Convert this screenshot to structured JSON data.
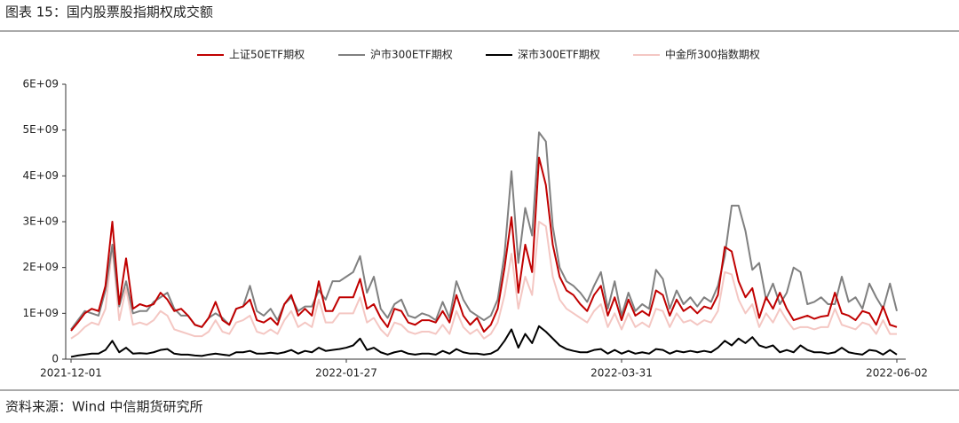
{
  "chart_data": {
    "type": "line",
    "title": "图表 15：国内股票股指期权成交额",
    "source": "资料来源：Wind 中信期货研究所",
    "categories": [
      "2021-12-01",
      null,
      null,
      null,
      null,
      null,
      null,
      null,
      null,
      null,
      null,
      null,
      null,
      null,
      null,
      null,
      null,
      null,
      null,
      null,
      null,
      null,
      null,
      null,
      null,
      null,
      null,
      null,
      null,
      null,
      null,
      null,
      null,
      null,
      null,
      null,
      null,
      null,
      null,
      null,
      "2022-01-27",
      null,
      null,
      null,
      null,
      null,
      null,
      null,
      null,
      null,
      null,
      null,
      null,
      null,
      null,
      null,
      null,
      null,
      null,
      null,
      null,
      null,
      null,
      null,
      null,
      null,
      null,
      null,
      null,
      null,
      null,
      null,
      null,
      null,
      null,
      null,
      null,
      null,
      null,
      null,
      "2022-03-31",
      null,
      null,
      null,
      null,
      null,
      null,
      null,
      null,
      null,
      null,
      null,
      null,
      null,
      null,
      null,
      null,
      null,
      null,
      null,
      null,
      null,
      null,
      null,
      null,
      null,
      null,
      null,
      null,
      null,
      null,
      null,
      null,
      null,
      null,
      null,
      null,
      null,
      null,
      null,
      "2022-06-02"
    ],
    "ylim": [
      0,
      6000000000.0
    ],
    "yticks": [
      0,
      {
        "value": 1000000000.0,
        "label": "1E+09"
      },
      {
        "value": 2000000000.0,
        "label": "2E+09"
      },
      {
        "value": 3000000000.0,
        "label": "3E+09"
      },
      {
        "value": 4000000000.0,
        "label": "4E+09"
      },
      {
        "value": 5000000000.0,
        "label": "5E+09"
      },
      {
        "value": 6000000000.0,
        "label": "6E+09"
      }
    ],
    "grid": false,
    "legend": "top",
    "series": [
      {
        "name": "上证50ETF期权",
        "color": "#c00000",
        "values": [
          620000000.0,
          800000000.0,
          1000000000.0,
          1100000000.0,
          1050000000.0,
          1600000000.0,
          3000000000.0,
          1200000000.0,
          2200000000.0,
          1100000000.0,
          1200000000.0,
          1150000000.0,
          1200000000.0,
          1450000000.0,
          1300000000.0,
          1050000000.0,
          1100000000.0,
          950000000.0,
          750000000.0,
          700000000.0,
          900000000.0,
          1250000000.0,
          850000000.0,
          750000000.0,
          1100000000.0,
          1150000000.0,
          1300000000.0,
          850000000.0,
          800000000.0,
          900000000.0,
          750000000.0,
          1200000000.0,
          1400000000.0,
          950000000.0,
          1100000000.0,
          950000000.0,
          1700000000.0,
          1050000000.0,
          1050000000.0,
          1350000000.0,
          1350000000.0,
          1350000000.0,
          1750000000.0,
          1100000000.0,
          1200000000.0,
          900000000.0,
          700000000.0,
          1100000000.0,
          1050000000.0,
          800000000.0,
          750000000.0,
          850000000.0,
          850000000.0,
          800000000.0,
          1050000000.0,
          800000000.0,
          1400000000.0,
          950000000.0,
          750000000.0,
          900000000.0,
          600000000.0,
          750000000.0,
          1100000000.0,
          2000000000.0,
          3100000000.0,
          1450000000.0,
          2500000000.0,
          1900000000.0,
          4400000000.0,
          3800000000.0,
          2500000000.0,
          1800000000.0,
          1500000000.0,
          1400000000.0,
          1200000000.0,
          1050000000.0,
          1400000000.0,
          1600000000.0,
          950000000.0,
          1350000000.0,
          850000000.0,
          1300000000.0,
          950000000.0,
          1050000000.0,
          950000000.0,
          1500000000.0,
          1400000000.0,
          950000000.0,
          1300000000.0,
          1050000000.0,
          1150000000.0,
          1000000000.0,
          1150000000.0,
          1100000000.0,
          1400000000.0,
          2450000000.0,
          2350000000.0,
          1700000000.0,
          1350000000.0,
          1550000000.0,
          900000000.0,
          1350000000.0,
          1100000000.0,
          1450000000.0,
          1100000000.0,
          850000000.0,
          900000000.0,
          950000000.0,
          880000000.0,
          930000000.0,
          950000000.0,
          1450000000.0,
          1000000000.0,
          950000000.0,
          850000000.0,
          1050000000.0,
          1000000000.0,
          750000000.0,
          1150000000.0,
          750000000.0,
          700000000.0
        ]
      },
      {
        "name": "沪市300ETF期权",
        "color": "#808080",
        "values": [
          650000000.0,
          850000000.0,
          1050000000.0,
          1000000000.0,
          950000000.0,
          1500000000.0,
          2500000000.0,
          1150000000.0,
          1700000000.0,
          1000000000.0,
          1050000000.0,
          1050000000.0,
          1250000000.0,
          1350000000.0,
          1450000000.0,
          1100000000.0,
          950000000.0,
          950000000.0,
          750000000.0,
          700000000.0,
          900000000.0,
          1000000000.0,
          900000000.0,
          750000000.0,
          1100000000.0,
          1150000000.0,
          1600000000.0,
          1050000000.0,
          950000000.0,
          1100000000.0,
          850000000.0,
          1200000000.0,
          1350000000.0,
          1050000000.0,
          1150000000.0,
          1150000000.0,
          1500000000.0,
          1300000000.0,
          1700000000.0,
          1700000000.0,
          1800000000.0,
          1900000000.0,
          2250000000.0,
          1450000000.0,
          1800000000.0,
          1100000000.0,
          900000000.0,
          1200000000.0,
          1300000000.0,
          950000000.0,
          900000000.0,
          1000000000.0,
          950000000.0,
          850000000.0,
          1250000000.0,
          900000000.0,
          1700000000.0,
          1300000000.0,
          1050000000.0,
          950000000.0,
          850000000.0,
          950000000.0,
          1300000000.0,
          2300000000.0,
          4100000000.0,
          2100000000.0,
          3300000000.0,
          2700000000.0,
          4950000000.0,
          4750000000.0,
          2900000000.0,
          2000000000.0,
          1700000000.0,
          1600000000.0,
          1450000000.0,
          1250000000.0,
          1600000000.0,
          1900000000.0,
          1100000000.0,
          1700000000.0,
          950000000.0,
          1450000000.0,
          1050000000.0,
          1200000000.0,
          1100000000.0,
          1950000000.0,
          1750000000.0,
          1100000000.0,
          1500000000.0,
          1200000000.0,
          1350000000.0,
          1150000000.0,
          1350000000.0,
          1250000000.0,
          1600000000.0,
          2250000000.0,
          3350000000.0,
          3350000000.0,
          2800000000.0,
          1950000000.0,
          2100000000.0,
          1300000000.0,
          1650000000.0,
          1200000000.0,
          1450000000.0,
          2000000000.0,
          1900000000.0,
          1200000000.0,
          1250000000.0,
          1350000000.0,
          1200000000.0,
          1200000000.0,
          1800000000.0,
          1250000000.0,
          1350000000.0,
          1100000000.0,
          1650000000.0,
          1350000000.0,
          1100000000.0,
          1650000000.0,
          1050000000.0
        ]
      },
      {
        "name": "深市300ETF期权",
        "color": "#000000",
        "values": [
          50000000.0,
          80000000.0,
          100000000.0,
          120000000.0,
          120000000.0,
          200000000.0,
          400000000.0,
          150000000.0,
          250000000.0,
          120000000.0,
          130000000.0,
          120000000.0,
          150000000.0,
          200000000.0,
          220000000.0,
          120000000.0,
          100000000.0,
          100000000.0,
          80000000.0,
          70000000.0,
          100000000.0,
          120000000.0,
          100000000.0,
          80000000.0,
          150000000.0,
          150000000.0,
          180000000.0,
          120000000.0,
          120000000.0,
          140000000.0,
          120000000.0,
          150000000.0,
          200000000.0,
          120000000.0,
          180000000.0,
          150000000.0,
          250000000.0,
          180000000.0,
          200000000.0,
          220000000.0,
          250000000.0,
          300000000.0,
          450000000.0,
          200000000.0,
          250000000.0,
          150000000.0,
          100000000.0,
          150000000.0,
          180000000.0,
          120000000.0,
          100000000.0,
          120000000.0,
          120000000.0,
          100000000.0,
          180000000.0,
          120000000.0,
          220000000.0,
          150000000.0,
          120000000.0,
          120000000.0,
          100000000.0,
          120000000.0,
          200000000.0,
          400000000.0,
          650000000.0,
          250000000.0,
          550000000.0,
          350000000.0,
          720000000.0,
          600000000.0,
          450000000.0,
          300000000.0,
          220000000.0,
          180000000.0,
          150000000.0,
          150000000.0,
          200000000.0,
          220000000.0,
          120000000.0,
          200000000.0,
          120000000.0,
          180000000.0,
          120000000.0,
          150000000.0,
          120000000.0,
          220000000.0,
          200000000.0,
          120000000.0,
          180000000.0,
          150000000.0,
          180000000.0,
          150000000.0,
          180000000.0,
          150000000.0,
          250000000.0,
          400000000.0,
          300000000.0,
          450000000.0,
          350000000.0,
          480000000.0,
          300000000.0,
          250000000.0,
          300000000.0,
          150000000.0,
          200000000.0,
          150000000.0,
          300000000.0,
          200000000.0,
          150000000.0,
          150000000.0,
          120000000.0,
          150000000.0,
          250000000.0,
          150000000.0,
          120000000.0,
          100000000.0,
          200000000.0,
          180000000.0,
          100000000.0,
          200000000.0,
          100000000.0
        ]
      },
      {
        "name": "中金所300指数期权",
        "color": "#f4c7c3",
        "values": [
          450000000.0,
          550000000.0,
          700000000.0,
          800000000.0,
          750000000.0,
          1100000000.0,
          2450000000.0,
          850000000.0,
          1550000000.0,
          750000000.0,
          800000000.0,
          750000000.0,
          850000000.0,
          1050000000.0,
          950000000.0,
          650000000.0,
          600000000.0,
          550000000.0,
          500000000.0,
          500000000.0,
          600000000.0,
          850000000.0,
          600000000.0,
          550000000.0,
          800000000.0,
          850000000.0,
          950000000.0,
          600000000.0,
          550000000.0,
          650000000.0,
          550000000.0,
          850000000.0,
          1050000000.0,
          700000000.0,
          800000000.0,
          700000000.0,
          1300000000.0,
          800000000.0,
          800000000.0,
          1000000000.0,
          1000000000.0,
          1000000000.0,
          1350000000.0,
          800000000.0,
          900000000.0,
          650000000.0,
          500000000.0,
          800000000.0,
          750000000.0,
          600000000.0,
          550000000.0,
          600000000.0,
          600000000.0,
          550000000.0,
          750000000.0,
          550000000.0,
          1050000000.0,
          700000000.0,
          550000000.0,
          650000000.0,
          450000000.0,
          550000000.0,
          800000000.0,
          1400000000.0,
          2300000000.0,
          1100000000.0,
          1800000000.0,
          1400000000.0,
          3000000000.0,
          2900000000.0,
          1800000000.0,
          1300000000.0,
          1100000000.0,
          1000000000.0,
          900000000.0,
          800000000.0,
          1050000000.0,
          1200000000.0,
          700000000.0,
          1000000000.0,
          650000000.0,
          1000000000.0,
          700000000.0,
          800000000.0,
          700000000.0,
          1100000000.0,
          1050000000.0,
          700000000.0,
          1000000000.0,
          800000000.0,
          850000000.0,
          750000000.0,
          850000000.0,
          800000000.0,
          1050000000.0,
          1900000000.0,
          1850000000.0,
          1300000000.0,
          1000000000.0,
          1200000000.0,
          700000000.0,
          1000000000.0,
          800000000.0,
          1100000000.0,
          850000000.0,
          650000000.0,
          700000000.0,
          700000000.0,
          650000000.0,
          700000000.0,
          700000000.0,
          1100000000.0,
          750000000.0,
          700000000.0,
          650000000.0,
          800000000.0,
          750000000.0,
          550000000.0,
          850000000.0,
          550000000.0,
          550000000.0
        ]
      }
    ]
  }
}
